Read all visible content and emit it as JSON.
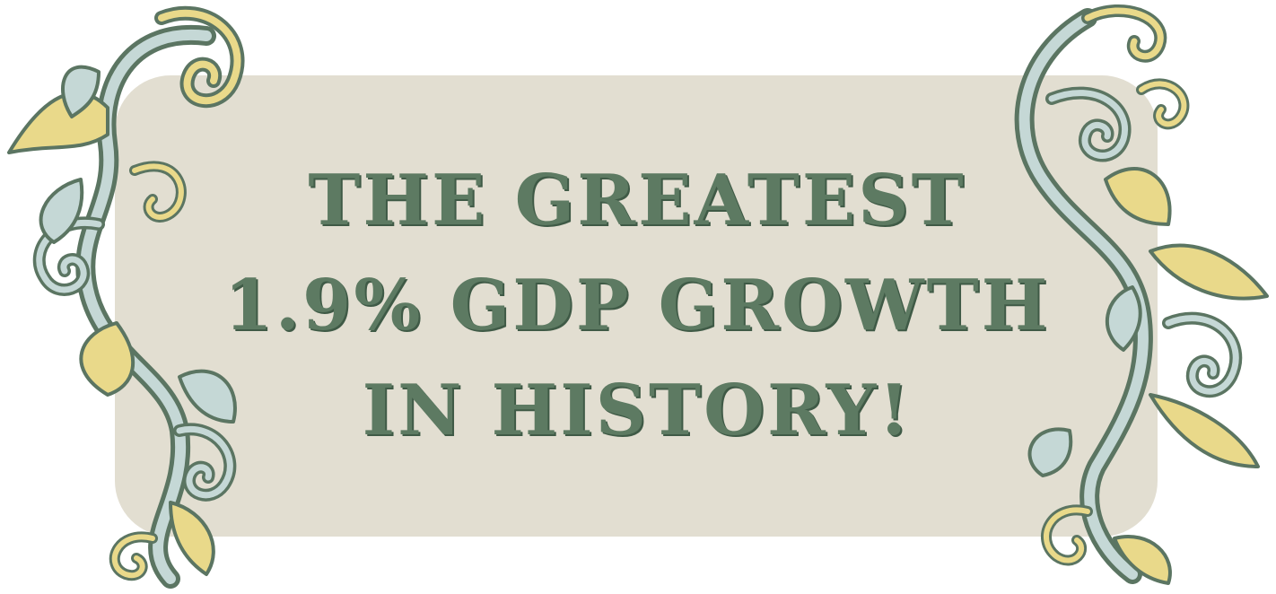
{
  "banner": {
    "lines": [
      "THE GREATEST",
      "1.9% GDP GROWTH",
      "IN HISTORY!"
    ]
  },
  "colors": {
    "background": "#ffffff",
    "plaque": "#e2ded1",
    "text": "#5d7a62",
    "text_shadow": "#3f5a46",
    "ornament_outline": "#5b7562",
    "ornament_fill_light": "#c5d8d6",
    "ornament_fill_gold": "#e9d98a"
  },
  "decorations": {
    "left": "baroque-scroll-ornament",
    "right": "baroque-scroll-ornament"
  }
}
